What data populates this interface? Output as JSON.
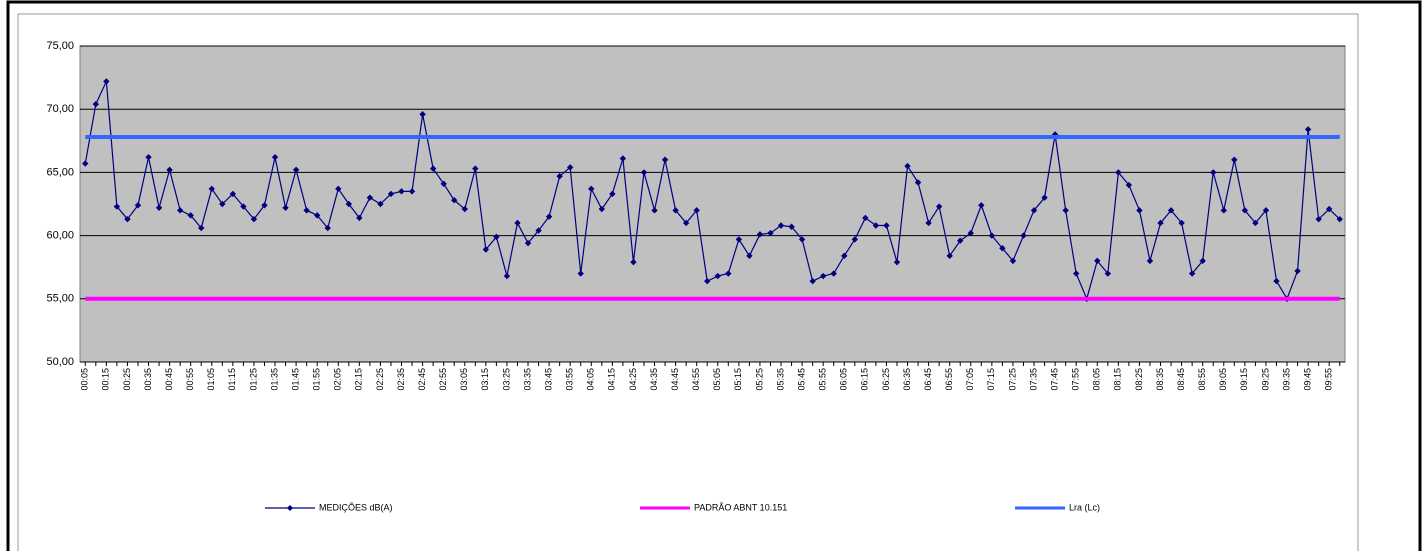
{
  "chart_data": {
    "type": "line",
    "categories": [
      "00:05",
      null,
      "00:15",
      null,
      "00:25",
      null,
      "00:35",
      null,
      "00:45",
      null,
      "00:55",
      null,
      "01:05",
      null,
      "01:15",
      null,
      "01:25",
      null,
      "01:35",
      null,
      "01:45",
      null,
      "01:55",
      null,
      "02:05",
      null,
      "02:15",
      null,
      "02:25",
      null,
      "02:35",
      null,
      "02:45",
      null,
      "02:55",
      null,
      "03:05",
      null,
      "03:15",
      null,
      "03:25",
      null,
      "03:35",
      null,
      "03:45",
      null,
      "03:55",
      null,
      "04:05",
      null,
      "04:15",
      null,
      "04:25",
      null,
      "04:35",
      null,
      "04:45",
      null,
      "04:55",
      null,
      "05:05",
      null,
      "05:15",
      null,
      "05:25",
      null,
      "05:35",
      null,
      "05:45",
      null,
      "05:55",
      null,
      "06:05",
      null,
      "06:15",
      null,
      "06:25",
      null,
      "06:35",
      null,
      "06:45",
      null,
      "06:55",
      null,
      "07:05",
      null,
      "07:15",
      null,
      "07:25",
      null,
      "07:35",
      null,
      "07:45",
      null,
      "07:55",
      null,
      "08:05",
      null,
      "08:15",
      null,
      "08:25",
      null,
      "08:35",
      null,
      "08:45",
      null,
      "08:55",
      null,
      "09:05",
      null,
      "09:15",
      null,
      "09:25",
      null,
      "09:35",
      null,
      "09:45",
      null,
      "09:55",
      null
    ],
    "series": [
      {
        "name": "MEDIÇÕES dB(A)",
        "color": "#000080",
        "marker": true,
        "values": [
          65.7,
          70.4,
          72.2,
          62.3,
          61.3,
          62.4,
          66.2,
          62.2,
          65.2,
          62.0,
          61.6,
          60.6,
          63.7,
          62.5,
          63.3,
          62.3,
          61.3,
          62.4,
          66.2,
          62.2,
          65.2,
          62.0,
          61.6,
          60.6,
          63.7,
          62.5,
          61.4,
          63.0,
          62.5,
          63.3,
          63.5,
          63.5,
          69.6,
          65.3,
          64.1,
          62.8,
          62.1,
          65.3,
          58.9,
          59.9,
          56.8,
          61.0,
          59.4,
          60.4,
          61.5,
          64.7,
          65.4,
          57.0,
          63.7,
          62.1,
          63.3,
          66.1,
          57.9,
          65.0,
          62.0,
          66.0,
          62.0,
          61.0,
          62.0,
          56.4,
          56.8,
          57.0,
          59.7,
          58.4,
          60.1,
          60.2,
          60.8,
          60.7,
          59.7,
          56.4,
          56.8,
          57.0,
          58.4,
          59.7,
          61.4,
          60.8,
          60.8,
          57.9,
          65.5,
          64.2,
          61.0,
          62.3,
          58.4,
          59.6,
          60.2,
          62.4,
          60.0,
          59.0,
          58.0,
          60.0,
          62.0,
          63.0,
          68.0,
          62.0,
          57.0,
          55.0,
          58.0,
          57.0,
          65.0,
          64.0,
          62.0,
          58.0,
          61.0,
          62.0,
          61.0,
          57.0,
          58.0,
          65.0,
          62.0,
          66.0,
          62.0,
          61.0,
          62.0,
          56.4,
          55.0,
          57.2,
          68.4,
          61.3,
          62.1,
          61.3
        ]
      },
      {
        "name": "PADRÃO ABNT 10.151",
        "color": "#ff00ff",
        "marker": false,
        "values": [
          55,
          55,
          55,
          55,
          55,
          55,
          55,
          55,
          55,
          55,
          55,
          55,
          55,
          55,
          55,
          55,
          55,
          55,
          55,
          55,
          55,
          55,
          55,
          55,
          55,
          55,
          55,
          55,
          55,
          55,
          55,
          55,
          55,
          55,
          55,
          55,
          55,
          55,
          55,
          55,
          55,
          55,
          55,
          55,
          55,
          55,
          55,
          55,
          55,
          55,
          55,
          55,
          55,
          55,
          55,
          55,
          55,
          55,
          55,
          55,
          55,
          55,
          55,
          55,
          55,
          55,
          55,
          55,
          55,
          55,
          55,
          55,
          55,
          55,
          55,
          55,
          55,
          55,
          55,
          55,
          55,
          55,
          55,
          55,
          55,
          55,
          55,
          55,
          55,
          55,
          55,
          55,
          55,
          55,
          55,
          55,
          55,
          55,
          55,
          55,
          55,
          55,
          55,
          55,
          55,
          55,
          55,
          55,
          55,
          55,
          55,
          55,
          55,
          55,
          55,
          55,
          55,
          55,
          55,
          55
        ]
      },
      {
        "name": "Lra (Lc)",
        "color": "#3366ff",
        "marker": false,
        "values": [
          67.8,
          67.8,
          67.8,
          67.8,
          67.8,
          67.8,
          67.8,
          67.8,
          67.8,
          67.8,
          67.8,
          67.8,
          67.8,
          67.8,
          67.8,
          67.8,
          67.8,
          67.8,
          67.8,
          67.8,
          67.8,
          67.8,
          67.8,
          67.8,
          67.8,
          67.8,
          67.8,
          67.8,
          67.8,
          67.8,
          67.8,
          67.8,
          67.8,
          67.8,
          67.8,
          67.8,
          67.8,
          67.8,
          67.8,
          67.8,
          67.8,
          67.8,
          67.8,
          67.8,
          67.8,
          67.8,
          67.8,
          67.8,
          67.8,
          67.8,
          67.8,
          67.8,
          67.8,
          67.8,
          67.8,
          67.8,
          67.8,
          67.8,
          67.8,
          67.8,
          67.8,
          67.8,
          67.8,
          67.8,
          67.8,
          67.8,
          67.8,
          67.8,
          67.8,
          67.8,
          67.8,
          67.8,
          67.8,
          67.8,
          67.8,
          67.8,
          67.8,
          67.8,
          67.8,
          67.8,
          67.8,
          67.8,
          67.8,
          67.8,
          67.8,
          67.8,
          67.8,
          67.8,
          67.8,
          67.8,
          67.8,
          67.8,
          67.8,
          67.8,
          67.8,
          67.8,
          67.8,
          67.8,
          67.8,
          67.8,
          67.8,
          67.8,
          67.8,
          67.8,
          67.8,
          67.8,
          67.8,
          67.8,
          67.8,
          67.8,
          67.8,
          67.8,
          67.8,
          67.8,
          67.8,
          67.8,
          67.8,
          67.8,
          67.8,
          67.8
        ]
      }
    ],
    "ylim": [
      50,
      75
    ],
    "yticks": [
      {
        "value": 50,
        "label": "50,00"
      },
      {
        "value": 55,
        "label": "55,00"
      },
      {
        "value": 60,
        "label": "60,00"
      },
      {
        "value": 65,
        "label": "65,00"
      },
      {
        "value": 70,
        "label": "70,00"
      },
      {
        "value": 75,
        "label": "75,00"
      }
    ],
    "grid": true,
    "plot_background": "#c0c0c0",
    "legend": "bottom"
  }
}
